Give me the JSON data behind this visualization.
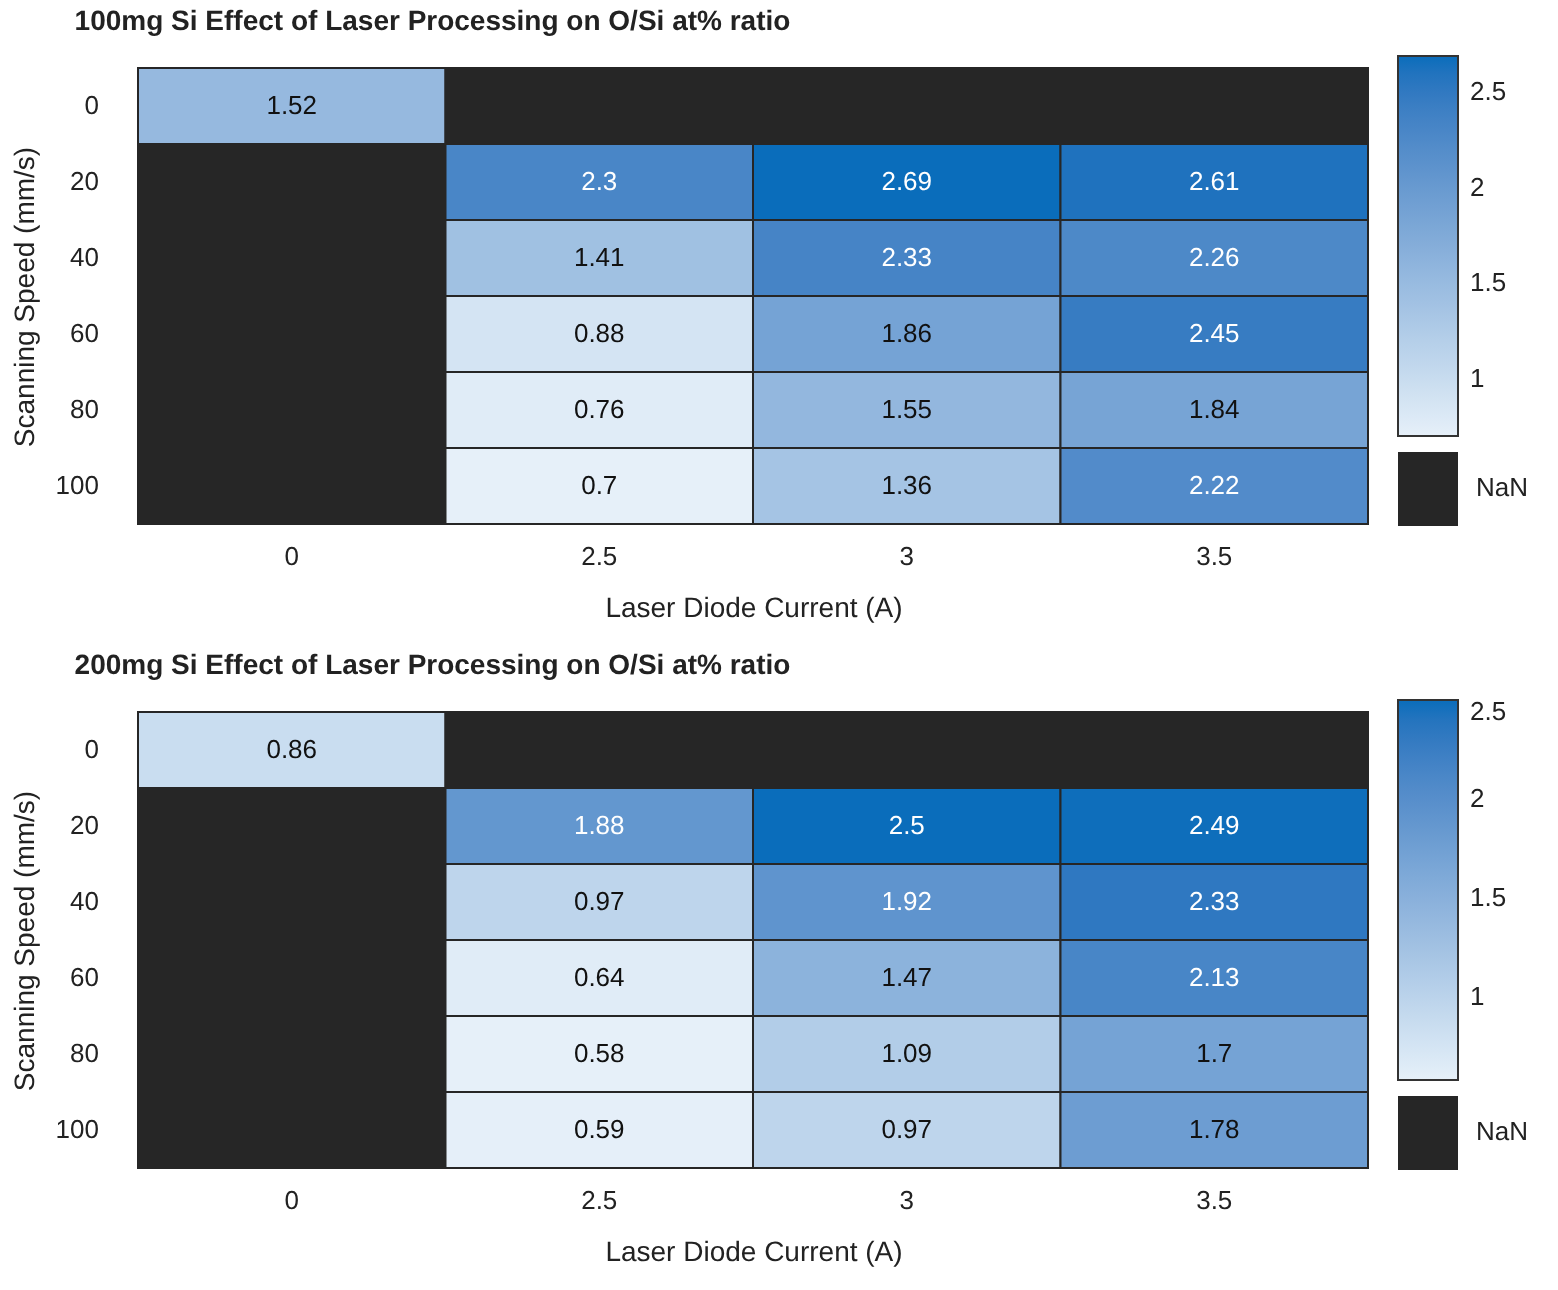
{
  "chart_data": [
    {
      "type": "heatmap",
      "title": "100mg Si Effect of Laser Processing on O/Si at% ratio",
      "xlabel": "Laser Diode Current (A)",
      "ylabel": "Scanning Speed (mm/s)",
      "categories": [
        "0",
        "2.5",
        "3",
        "3.5"
      ],
      "y_categories": [
        "0",
        "20",
        "40",
        "60",
        "80",
        "100"
      ],
      "cells": [
        [
          1.52,
          null,
          null,
          null
        ],
        [
          null,
          2.3,
          2.69,
          2.61
        ],
        [
          null,
          1.41,
          2.33,
          2.26
        ],
        [
          null,
          0.88,
          1.86,
          2.45
        ],
        [
          null,
          0.76,
          1.55,
          1.84
        ],
        [
          null,
          0.7,
          1.36,
          2.22
        ]
      ],
      "clim": [
        0.7,
        2.69
      ],
      "cticks": [
        1,
        1.5,
        2,
        2.5
      ],
      "data_labels": true,
      "annotations": [
        "NaN"
      ]
    },
    {
      "type": "heatmap",
      "title": "200mg Si Effect of Laser Processing on O/Si at% ratio",
      "xlabel": "Laser Diode Current (A)",
      "ylabel": "Scanning Speed (mm/s)",
      "categories": [
        "0",
        "2.5",
        "3",
        "3.5"
      ],
      "y_categories": [
        "0",
        "20",
        "40",
        "60",
        "80",
        "100"
      ],
      "cells": [
        [
          0.86,
          null,
          null,
          null
        ],
        [
          null,
          1.88,
          2.5,
          2.49
        ],
        [
          null,
          0.97,
          1.92,
          2.33
        ],
        [
          null,
          0.64,
          1.47,
          2.13
        ],
        [
          null,
          0.58,
          1.09,
          1.7
        ],
        [
          null,
          0.59,
          0.97,
          1.78
        ]
      ],
      "clim": [
        0.58,
        2.5
      ],
      "cticks": [
        1,
        1.5,
        2,
        2.5
      ],
      "data_labels": true,
      "annotations": [
        "NaN"
      ]
    }
  ]
}
